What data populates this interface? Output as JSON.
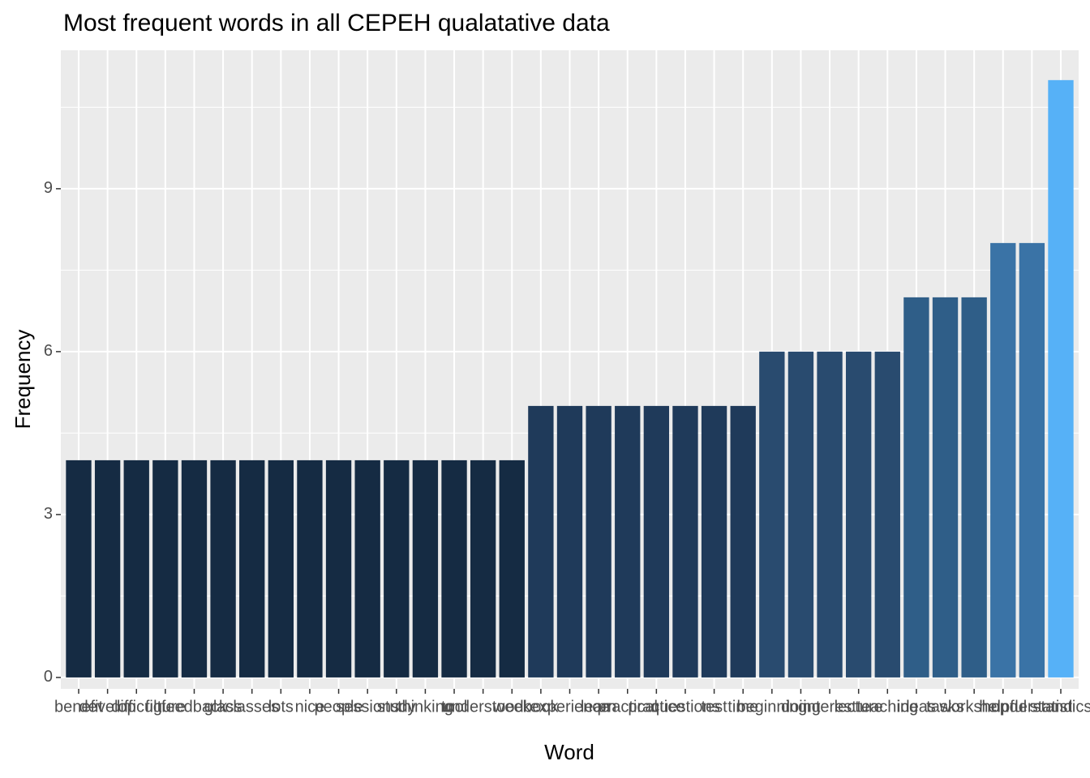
{
  "chart_data": {
    "type": "bar",
    "title": "Most frequent words in all CEPEH qualatative data",
    "x_label": "Word",
    "y_label": "Frequency",
    "categories": [
      "benefit",
      "develop",
      "difficult",
      "figure",
      "feedback",
      "glass",
      "classes",
      "lots",
      "nice",
      "people",
      "sessions",
      "study",
      "thinking",
      "tool",
      "understood",
      "week",
      "book",
      "experience",
      "learn",
      "practical",
      "practice",
      "questions",
      "test",
      "time",
      "beginning",
      "doing",
      "interest",
      "lecture",
      "teaching",
      "ideas",
      "tasks",
      "workshop",
      "helpful",
      "understand",
      "statistics"
    ],
    "values": [
      4,
      4,
      4,
      4,
      4,
      4,
      4,
      4,
      4,
      4,
      4,
      4,
      4,
      4,
      4,
      4,
      5,
      5,
      5,
      5,
      5,
      5,
      5,
      5,
      6,
      6,
      6,
      6,
      6,
      7,
      7,
      7,
      8,
      8,
      11
    ],
    "colors": [
      "#152B43",
      "#152B43",
      "#152B43",
      "#152B43",
      "#152B43",
      "#152B43",
      "#152B43",
      "#152B43",
      "#152B43",
      "#152B43",
      "#152B43",
      "#152B43",
      "#152B43",
      "#152B43",
      "#152B43",
      "#152B43",
      "#1F3A5A",
      "#1F3A5A",
      "#1F3A5A",
      "#1F3A5A",
      "#1F3A5A",
      "#1F3A5A",
      "#1F3A5A",
      "#1F3A5A",
      "#294B6F",
      "#294B6F",
      "#294B6F",
      "#294B6F",
      "#294B6F",
      "#2F5E88",
      "#2F5E88",
      "#2F5E88",
      "#3A73A6",
      "#3A73A6",
      "#56B1F7"
    ],
    "ylim": [
      -0.21,
      11.55
    ],
    "yticks": [
      0,
      3,
      6,
      9
    ],
    "grid": true
  }
}
